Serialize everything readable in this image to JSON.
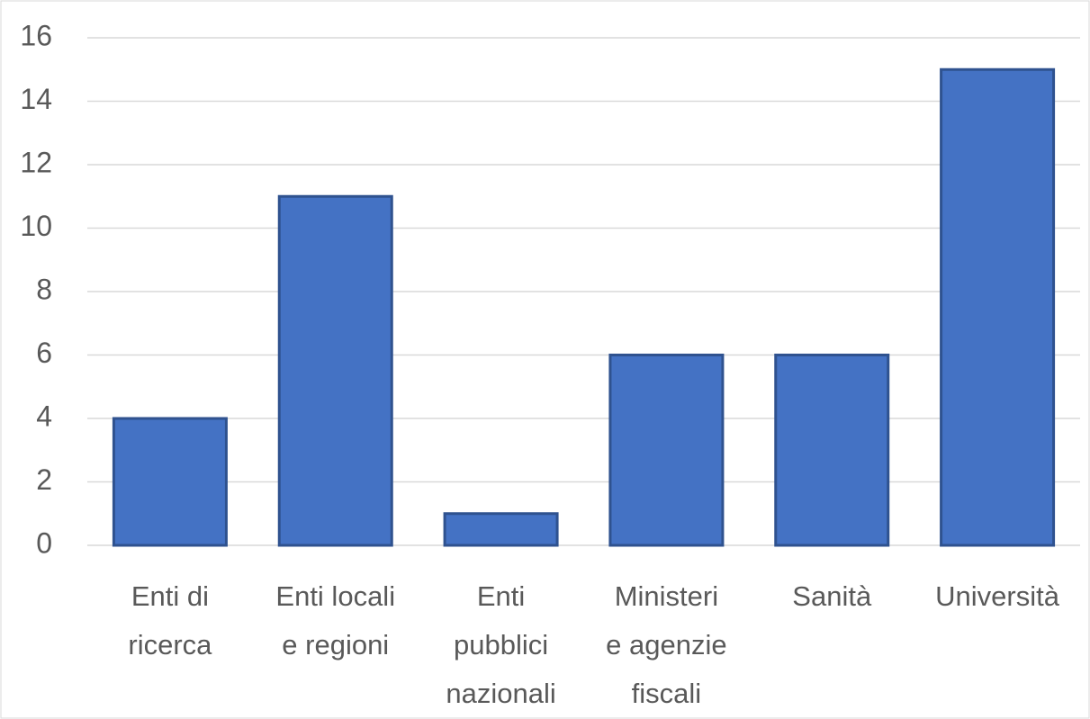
{
  "chart_data": {
    "type": "bar",
    "categories": [
      "Enti di\nricerca",
      "Enti locali\ne regioni",
      "Enti\npubblici\nnazionali",
      "Ministeri\ne agenzie\nfiscali",
      "Sanità",
      "Università"
    ],
    "values": [
      4,
      11,
      1,
      6,
      6,
      15
    ],
    "color": "#4472c4",
    "ylim": [
      0,
      16
    ],
    "yticks": [
      0,
      2,
      4,
      6,
      8,
      10,
      12,
      14,
      16
    ],
    "grid": true
  }
}
